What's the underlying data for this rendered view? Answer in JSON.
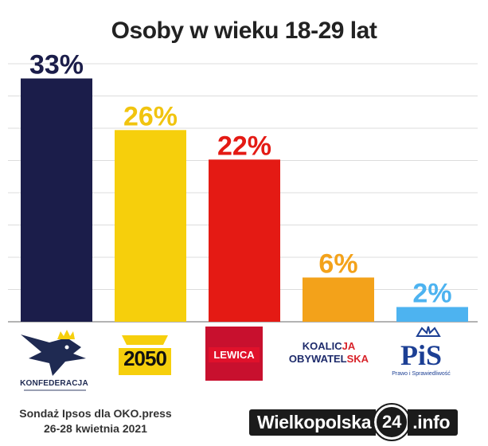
{
  "chart_data": {
    "type": "bar",
    "title": "Osoby w wieku 18-29 lat",
    "categories": [
      "KONFEDERACJA",
      "2050",
      "LEWICA",
      "KOALICJA OBYWATELSKA",
      "PiS"
    ],
    "values": [
      33,
      26,
      22,
      6,
      2
    ],
    "value_labels": [
      "33%",
      "26%",
      "22%",
      "6%",
      "2%"
    ],
    "colors": [
      "#1b1d4a",
      "#f6cf0c",
      "#e41a14",
      "#f3a21a",
      "#4db3f0"
    ],
    "label_colors": [
      "#1b1d4a",
      "#f1c40f",
      "#e41a14",
      "#f3a21a",
      "#4db3f0"
    ],
    "ylim": [
      0,
      35
    ],
    "grid": true
  },
  "logos": {
    "konfederacja": "KONFEDERACJA",
    "p2050": "2050",
    "lewica": "LEWICA",
    "ko_line1_a": "KOALIC",
    "ko_line1_b": "JA",
    "ko_line2_a": "OBYWATEL",
    "ko_line2_b": "SKA",
    "pis": "PiS",
    "pis_sub": "Prawo i Sprawiedliwość"
  },
  "source": {
    "line1": "Sondaż Ipsos dla OKO.press",
    "line2": "26-28 kwietnia 2021"
  },
  "brand": {
    "main": "Wielkopolska",
    "num": "24",
    "tld": ".info"
  }
}
